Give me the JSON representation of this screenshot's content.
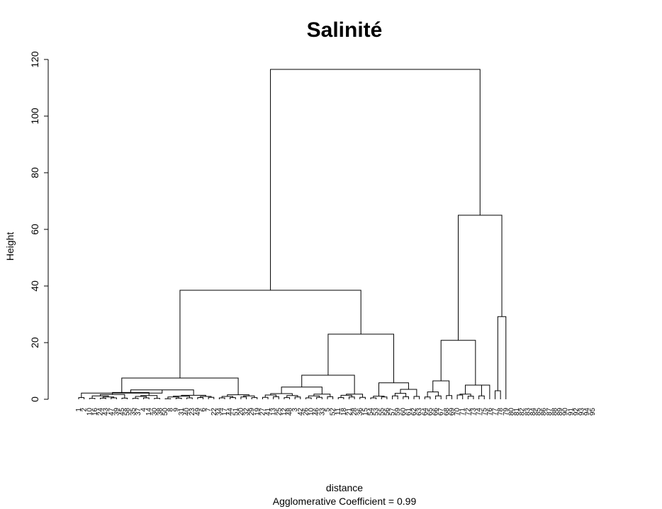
{
  "chart_data": {
    "type": "dendrogram",
    "title": "Salinité",
    "ylabel": "Height",
    "xlabel": "distance",
    "subtitle_prefix": "Agglomerative Coefficient = ",
    "agglomerative_coefficient": "0.99",
    "ylim": [
      0,
      120
    ],
    "yticks": [
      0,
      20,
      40,
      60,
      80,
      100,
      120
    ],
    "leaves": [
      "1",
      "2",
      "10",
      "16",
      "24",
      "43",
      "47",
      "39",
      "45",
      "58",
      "35",
      "37",
      "4",
      "14",
      "30",
      "38",
      "50",
      "8",
      "9",
      "31",
      "40",
      "23",
      "49",
      "6",
      "7",
      "22",
      "34",
      "17",
      "44",
      "51",
      "20",
      "32",
      "29",
      "19",
      "27",
      "41",
      "13",
      "25",
      "12",
      "48",
      "3",
      "42",
      "26",
      "10",
      "46",
      "33",
      "5",
      "52",
      "11",
      "18",
      "21",
      "28",
      "36",
      "15",
      "54",
      "53",
      "55",
      "56",
      "57",
      "59",
      "60",
      "61",
      "62",
      "63",
      "64",
      "65",
      "66",
      "67",
      "68",
      "69",
      "70",
      "71",
      "72",
      "73",
      "74",
      "75",
      "76",
      "77",
      "78",
      "79",
      "80",
      "81",
      "82",
      "83",
      "84",
      "85",
      "86",
      "87",
      "88",
      "89",
      "90",
      "91",
      "92",
      "93",
      "94",
      "95"
    ],
    "merges": [
      {
        "left": 0,
        "right": 1,
        "height": 0.6
      },
      {
        "left": 2,
        "right": 3,
        "height": 0.3
      },
      {
        "left": 4,
        "right": 5,
        "height": 0.4
      },
      {
        "left": 6,
        "right": 7,
        "height": 0.5
      },
      {
        "left": 8,
        "right": 9,
        "height": 0.4
      },
      {
        "left": -3,
        "right": -4,
        "height": 0.8
      },
      {
        "left": -2,
        "right": -6,
        "height": 1.2
      },
      {
        "left": -7,
        "right": -5,
        "height": 1.7
      },
      {
        "left": 10,
        "right": 11,
        "height": 0.3
      },
      {
        "left": 12,
        "right": 13,
        "height": 0.5
      },
      {
        "left": -9,
        "right": -10,
        "height": 1.0
      },
      {
        "left": 14,
        "right": 15,
        "height": 0.3
      },
      {
        "left": -11,
        "right": -12,
        "height": 1.3
      },
      {
        "left": -8,
        "right": -13,
        "height": 2.4
      },
      {
        "left": 16,
        "right": 17,
        "height": 0.2
      },
      {
        "left": 18,
        "right": 19,
        "height": 0.4
      },
      {
        "left": -15,
        "right": -16,
        "height": 0.8
      },
      {
        "left": 20,
        "right": 21,
        "height": 0.5
      },
      {
        "left": -17,
        "right": -18,
        "height": 1.1
      },
      {
        "left": 22,
        "right": 23,
        "height": 0.6
      },
      {
        "left": 24,
        "right": 25,
        "height": 0.7
      },
      {
        "left": -20,
        "right": -21,
        "height": 1.0
      },
      {
        "left": -19,
        "right": -22,
        "height": 1.4
      },
      {
        "left": -14,
        "right": -23,
        "height": 3.3
      },
      {
        "left": 26,
        "right": 27,
        "height": 0.5
      },
      {
        "left": 28,
        "right": 29,
        "height": 0.6
      },
      {
        "left": -25,
        "right": -26,
        "height": 1.0
      },
      {
        "left": 30,
        "right": 31,
        "height": 0.8
      },
      {
        "left": 32,
        "right": 33,
        "height": 0.6
      },
      {
        "left": -28,
        "right": -29,
        "height": 1.2
      },
      {
        "left": -27,
        "right": -30,
        "height": 1.6
      },
      {
        "left": -1,
        "right": -24,
        "height": 2.2
      },
      {
        "left": -32,
        "right": -31,
        "height": 7.5
      },
      {
        "left": 34,
        "right": 35,
        "height": 0.7
      },
      {
        "left": 36,
        "right": 37,
        "height": 0.9
      },
      {
        "left": -34,
        "right": -35,
        "height": 1.5
      },
      {
        "left": 38,
        "right": 39,
        "height": 0.6
      },
      {
        "left": 40,
        "right": 41,
        "height": 0.8
      },
      {
        "left": -37,
        "right": -38,
        "height": 1.3
      },
      {
        "left": -36,
        "right": -39,
        "height": 2.0
      },
      {
        "left": 42,
        "right": 43,
        "height": 0.5
      },
      {
        "left": 44,
        "right": 45,
        "height": 0.7
      },
      {
        "left": -41,
        "right": -42,
        "height": 1.2
      },
      {
        "left": 46,
        "right": 47,
        "height": 0.9
      },
      {
        "left": -43,
        "right": -44,
        "height": 1.8
      },
      {
        "left": -40,
        "right": -45,
        "height": 4.3
      },
      {
        "left": 48,
        "right": 49,
        "height": 0.6
      },
      {
        "left": 50,
        "right": 51,
        "height": 0.8
      },
      {
        "left": -47,
        "right": -48,
        "height": 1.4
      },
      {
        "left": 52,
        "right": 53,
        "height": 0.7
      },
      {
        "left": -49,
        "right": -50,
        "height": 1.8
      },
      {
        "left": -46,
        "right": -51,
        "height": 8.5
      },
      {
        "left": 54,
        "right": 55,
        "height": 0.5
      },
      {
        "left": 56,
        "right": 57,
        "height": 0.8
      },
      {
        "left": -53,
        "right": -54,
        "height": 1.1
      },
      {
        "left": 58,
        "right": 59,
        "height": 1.2
      },
      {
        "left": 60,
        "right": 61,
        "height": 0.9
      },
      {
        "left": -56,
        "right": -57,
        "height": 2.1
      },
      {
        "left": 62,
        "right": 63,
        "height": 1.0
      },
      {
        "left": -58,
        "right": -59,
        "height": 3.5
      },
      {
        "left": -55,
        "right": -60,
        "height": 5.8
      },
      {
        "left": -52,
        "right": -61,
        "height": 23.0
      },
      {
        "left": -33,
        "right": -62,
        "height": 38.5
      },
      {
        "left": 64,
        "right": 65,
        "height": 0.8
      },
      {
        "left": 66,
        "right": 67,
        "height": 1.2
      },
      {
        "left": -64,
        "right": -65,
        "height": 2.6
      },
      {
        "left": 68,
        "right": 69,
        "height": 1.3
      },
      {
        "left": -66,
        "right": -67,
        "height": 6.5
      },
      {
        "left": 70,
        "right": 71,
        "height": 1.5
      },
      {
        "left": 72,
        "right": 73,
        "height": 1.1
      },
      {
        "left": -69,
        "right": -70,
        "height": 1.8
      },
      {
        "left": 74,
        "right": 75,
        "height": 1.2
      },
      {
        "left": -72,
        "right": 76,
        "height": 5.0
      },
      {
        "left": -71,
        "right": -73,
        "height": 5.0
      },
      {
        "left": -68,
        "right": -74,
        "height": 20.8
      },
      {
        "left": 77,
        "right": 78,
        "height": 3.0
      },
      {
        "left": -76,
        "right": 79,
        "height": 29.2
      },
      {
        "left": -75,
        "right": -77,
        "height": 65.0
      },
      {
        "left": -63,
        "right": -78,
        "height": 116.5
      }
    ]
  }
}
